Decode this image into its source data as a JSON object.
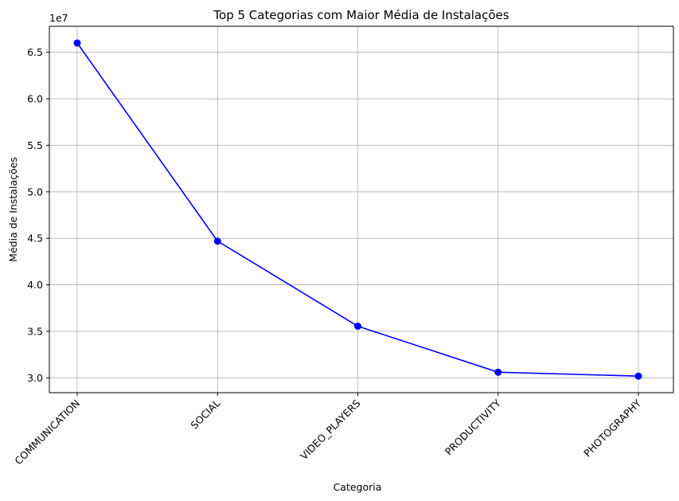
{
  "chart_data": {
    "type": "line",
    "title": "Top 5 Categorias com Maior Média de Instalações",
    "xlabel": "Categoria",
    "ylabel": "Média de Instalações",
    "y_offset_label": "1e7",
    "categories": [
      "COMMUNICATION",
      "SOCIAL",
      "VIDEO_PLAYERS",
      "PRODUCTIVITY",
      "PHOTOGRAPHY"
    ],
    "values": [
      66000000,
      44700000,
      35550000,
      30600000,
      30180000
    ],
    "ylim": [
      28400000,
      67800000
    ],
    "yticks": [
      30000000,
      35000000,
      40000000,
      45000000,
      50000000,
      55000000,
      60000000,
      65000000
    ],
    "ytick_labels": [
      "3.0",
      "3.5",
      "4.0",
      "4.5",
      "5.0",
      "5.5",
      "6.0",
      "6.5"
    ],
    "grid": true,
    "line_color": "#0000ff",
    "marker": "circle"
  }
}
